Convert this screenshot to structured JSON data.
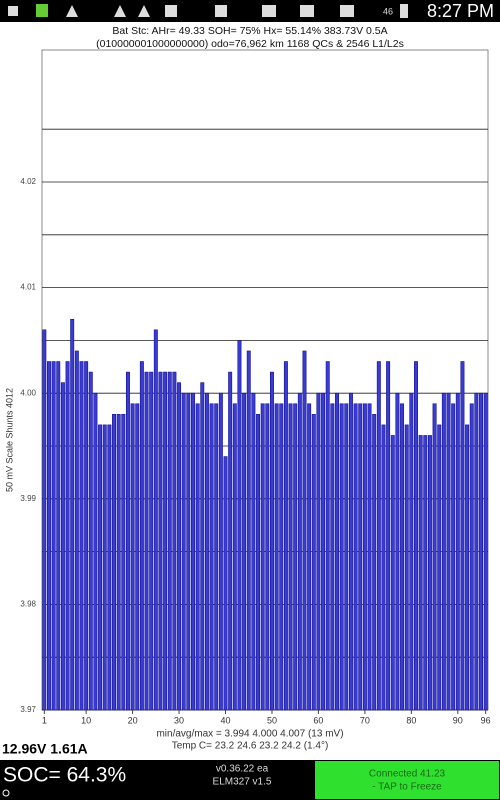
{
  "status_bar": {
    "signal": "46",
    "time": "8:27 PM"
  },
  "header": {
    "line1": "Bat Stc: AHr= 49.33  SOH= 75%  Hx= 55.14%  383.73V 0.5A",
    "line2": "(010000001000000000) odo=76,962 km  1168 QCs  &  2546 L1/L2s"
  },
  "chart_data": {
    "type": "bar",
    "y_label": "50 mV Scale  Shunts 4012",
    "color": "#3a3ad6",
    "edge_color": "#14148a",
    "x": [
      1,
      2,
      3,
      4,
      5,
      6,
      7,
      8,
      9,
      10,
      11,
      12,
      13,
      14,
      15,
      16,
      17,
      18,
      19,
      20,
      21,
      22,
      23,
      24,
      25,
      26,
      27,
      28,
      29,
      30,
      31,
      32,
      33,
      34,
      35,
      36,
      37,
      38,
      39,
      40,
      41,
      42,
      43,
      44,
      45,
      46,
      47,
      48,
      49,
      50,
      51,
      52,
      53,
      54,
      55,
      56,
      57,
      58,
      59,
      60,
      61,
      62,
      63,
      64,
      65,
      66,
      67,
      68,
      69,
      70,
      71,
      72,
      73,
      74,
      75,
      76,
      77,
      78,
      79,
      80,
      81,
      82,
      83,
      84,
      85,
      86,
      87,
      88,
      89,
      90,
      91,
      92,
      93,
      94,
      95,
      96
    ],
    "values": [
      4.006,
      4.003,
      4.003,
      4.003,
      4.001,
      4.003,
      4.007,
      4.004,
      4.003,
      4.003,
      4.002,
      4.0,
      3.997,
      3.997,
      3.997,
      3.998,
      3.998,
      3.998,
      4.002,
      3.999,
      3.999,
      4.003,
      4.002,
      4.002,
      4.006,
      4.002,
      4.002,
      4.002,
      4.002,
      4.001,
      4.0,
      4.0,
      4.0,
      3.999,
      4.001,
      4.0,
      3.999,
      3.999,
      4.0,
      3.994,
      4.002,
      3.999,
      4.005,
      4.0,
      4.004,
      4.0,
      3.998,
      3.999,
      3.999,
      4.002,
      3.999,
      3.999,
      4.003,
      3.999,
      3.999,
      4.0,
      4.004,
      3.999,
      3.998,
      4.0,
      4.0,
      4.003,
      3.999,
      4.0,
      3.999,
      3.999,
      4.0,
      3.999,
      3.999,
      3.999,
      3.999,
      3.998,
      4.003,
      3.997,
      4.003,
      3.996,
      4.0,
      3.999,
      3.997,
      4.0,
      4.003,
      3.996,
      3.996,
      3.996,
      3.999,
      3.997,
      4.0,
      4.0,
      3.999,
      4.0,
      4.003,
      3.997,
      3.999,
      4.0,
      4.0,
      4.0
    ],
    "xlim": [
      0.5,
      96.5
    ],
    "xticks": [
      1,
      10,
      20,
      30,
      40,
      50,
      60,
      70,
      80,
      90,
      96
    ],
    "ylim": [
      3.97,
      4.0325
    ],
    "yticks": [
      {
        "value": 3.97,
        "label": "3.97"
      },
      {
        "value": 3.98,
        "label": "3.98"
      },
      {
        "value": 3.99,
        "label": "3.99"
      },
      {
        "value": 4,
        "label": "4.00"
      },
      {
        "value": 4.01,
        "label": "4.01"
      },
      4.02
    ],
    "minor_yticks": [
      3.975,
      3.985,
      3.995,
      4.005,
      4.015,
      4.025
    ],
    "grid": true,
    "stats_line": "min/avg/max = 3.994 4.000 4.007  (13 mV)",
    "temp_line": "Temp C= 23.2  24.6  23.2  24.2  (1.4°)"
  },
  "pack": "12.96V 1.61A",
  "footer": {
    "soc": "SOC= 64.3%",
    "version": "v0.36.22 ea",
    "adapter": "ELM327 v1.5",
    "status1": "Connected 41.23",
    "status2": "- TAP to Freeze"
  }
}
